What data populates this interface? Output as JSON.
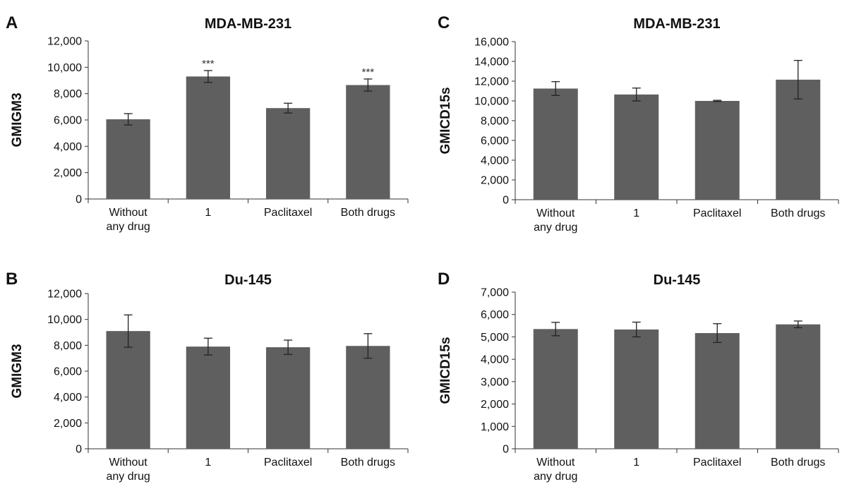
{
  "figure": {
    "background": "#ffffff",
    "bar_color": "#5f5f5f",
    "axis_color": "#333333",
    "error_bar_color": "#222222"
  },
  "chart_data": [
    {
      "panel": "A",
      "type": "bar",
      "title": "MDA-MB-231",
      "ylabel": "GMIGM3",
      "xlabel": "",
      "categories": [
        [
          "Without",
          "any drug"
        ],
        [
          "1"
        ],
        [
          "Paclitaxel"
        ],
        [
          "Both drugs"
        ]
      ],
      "values": [
        6050,
        9300,
        6900,
        8650
      ],
      "errors": [
        430,
        450,
        370,
        460
      ],
      "annotations": [
        "",
        "***",
        "",
        "***"
      ],
      "ylim": [
        0,
        12000
      ],
      "yticks": [
        0,
        2000,
        4000,
        6000,
        8000,
        10000,
        12000
      ],
      "ytick_labels": [
        "0",
        "2,000",
        "4,000",
        "6,000",
        "8,000",
        "10,000",
        "12,000"
      ],
      "grid": false,
      "legend": "none"
    },
    {
      "panel": "C",
      "type": "bar",
      "title": "MDA-MB-231",
      "ylabel": "GMICD15s",
      "xlabel": "",
      "categories": [
        [
          "Without",
          "any drug"
        ],
        [
          "1"
        ],
        [
          "Paclitaxel"
        ],
        [
          "Both drugs"
        ]
      ],
      "values": [
        11250,
        10650,
        10000,
        12150
      ],
      "errors": [
        700,
        650,
        60,
        1950
      ],
      "annotations": [
        "",
        "",
        "",
        ""
      ],
      "ylim": [
        0,
        16000
      ],
      "yticks": [
        0,
        2000,
        4000,
        6000,
        8000,
        10000,
        12000,
        14000,
        16000
      ],
      "ytick_labels": [
        "0",
        "2,000",
        "4,000",
        "6,000",
        "8,000",
        "10,000",
        "12,000",
        "14,000",
        "16,000"
      ],
      "grid": false,
      "legend": "none"
    },
    {
      "panel": "B",
      "type": "bar",
      "title": "Du-145",
      "ylabel": "GMIGM3",
      "xlabel": "",
      "categories": [
        [
          "Without",
          "any drug"
        ],
        [
          "1"
        ],
        [
          "Paclitaxel"
        ],
        [
          "Both drugs"
        ]
      ],
      "values": [
        9100,
        7900,
        7850,
        7950
      ],
      "errors": [
        1250,
        650,
        550,
        950
      ],
      "annotations": [
        "",
        "",
        "",
        ""
      ],
      "ylim": [
        0,
        12000
      ],
      "yticks": [
        0,
        2000,
        4000,
        6000,
        8000,
        10000,
        12000
      ],
      "ytick_labels": [
        "0",
        "2,000",
        "4,000",
        "6,000",
        "8,000",
        "10,000",
        "12,000"
      ],
      "grid": false,
      "legend": "none"
    },
    {
      "panel": "D",
      "type": "bar",
      "title": "Du-145",
      "ylabel": "GMICD15s",
      "xlabel": "",
      "categories": [
        [
          "Without",
          "any drug"
        ],
        [
          "1"
        ],
        [
          "Paclitaxel"
        ],
        [
          "Both drugs"
        ]
      ],
      "values": [
        5350,
        5330,
        5170,
        5560
      ],
      "errors": [
        300,
        330,
        420,
        150
      ],
      "annotations": [
        "",
        "",
        "",
        ""
      ],
      "ylim": [
        0,
        7000
      ],
      "yticks": [
        0,
        1000,
        2000,
        3000,
        4000,
        5000,
        6000,
        7000
      ],
      "ytick_labels": [
        "0",
        "1,000",
        "2,000",
        "3,000",
        "4,000",
        "5,000",
        "6,000",
        "7,000"
      ],
      "grid": false,
      "legend": "none"
    }
  ]
}
